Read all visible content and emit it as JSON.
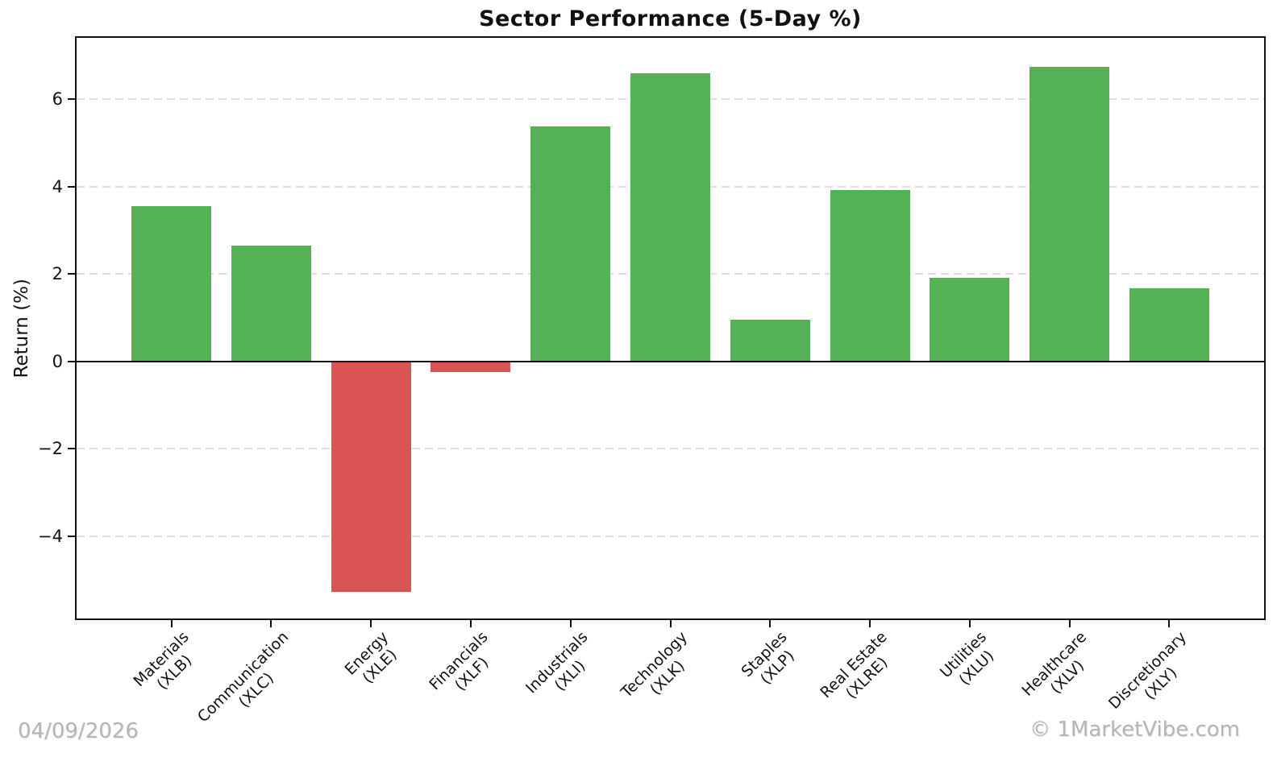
{
  "chart_data": {
    "type": "bar",
    "title": "Sector Performance (5-Day %)",
    "ylabel": "Return (%)",
    "xlabel": "",
    "categories": [
      "Materials",
      "Communication",
      "Energy",
      "Financials",
      "Industrials",
      "Technology",
      "Staples",
      "Real Estate",
      "Utilities",
      "Healthcare",
      "Discretionary"
    ],
    "tickers": [
      "XLB",
      "XLC",
      "XLE",
      "XLF",
      "XLI",
      "XLK",
      "XLP",
      "XLRE",
      "XLU",
      "XLV",
      "XLY"
    ],
    "values": [
      3.55,
      2.65,
      -5.27,
      -0.25,
      5.38,
      6.59,
      0.95,
      3.92,
      1.91,
      6.73,
      1.68
    ],
    "yticks": [
      -4,
      -2,
      0,
      2,
      4,
      6
    ],
    "ytick_labels": [
      "−4",
      "−2",
      "0",
      "2",
      "4",
      "6"
    ],
    "ylim": [
      -5.88,
      7.4
    ],
    "grid": "horizontal-dashed",
    "zero_line": true,
    "legend": "none",
    "colors": {
      "positive": "#55b155",
      "negative": "#db5454",
      "grid": "#dddddd",
      "axis": "#111111",
      "text": "#111111",
      "muted": "#b5b5b5"
    }
  },
  "footer": {
    "date": "04/09/2026",
    "watermark": "© 1MarketVibe.com"
  }
}
